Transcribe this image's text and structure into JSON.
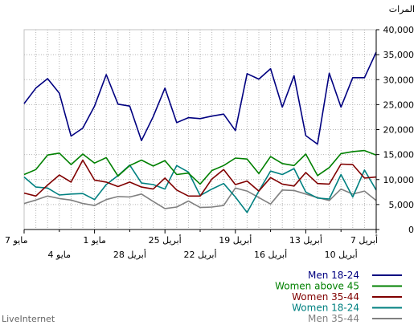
{
  "footer": "LiveInternet",
  "chart_data": {
    "type": "line",
    "ylabel": "المرات",
    "ylim": [
      0,
      40000
    ],
    "y_ticks": [
      "0",
      "5,000",
      "10,000",
      "15,000",
      "20,000",
      "25,000",
      "30,000",
      "35,000",
      "40,000"
    ],
    "x_ticks_row1": [
      "7 مايو",
      "1 مايو",
      "25 أبريل",
      "19 أبريل",
      "13 أبريل",
      "7 أبريل"
    ],
    "x_ticks_row2": [
      "4 مايو",
      "28 أبريل",
      "22 أبريل",
      "16 أبريل",
      "10 أبريل"
    ],
    "x_order": "right-to-left, earliest date at the right edge",
    "grid": true,
    "series": [
      {
        "name": "Men 18-24",
        "color": "#000080",
        "values": [
          25200,
          28300,
          30200,
          27300,
          18700,
          20300,
          24700,
          31000,
          25100,
          24700,
          17800,
          22600,
          28300,
          21400,
          22400,
          22200,
          22700,
          23100,
          19800,
          31200,
          30100,
          32200,
          24500,
          30800,
          18800,
          17100,
          31300,
          24500,
          30400,
          30400,
          35500
        ]
      },
      {
        "name": "Women above 45",
        "color": "#008000",
        "values": [
          11000,
          12000,
          14900,
          15300,
          13000,
          15100,
          13300,
          14400,
          10700,
          12800,
          13900,
          12700,
          13800,
          11000,
          11300,
          9100,
          11800,
          12800,
          14300,
          14100,
          11200,
          14600,
          13200,
          12800,
          15100,
          10800,
          12400,
          15200,
          15600,
          15800,
          14900
        ]
      },
      {
        "name": "Women 35-44",
        "color": "#800000",
        "values": [
          7300,
          6700,
          8900,
          10900,
          9500,
          13900,
          9900,
          9500,
          8600,
          9500,
          8500,
          8100,
          10300,
          7900,
          6700,
          6700,
          10100,
          12000,
          9000,
          9700,
          7700,
          10400,
          9100,
          8700,
          11400,
          9200,
          9100,
          13100,
          13000,
          10300,
          10500
        ]
      },
      {
        "name": "Women 18-24",
        "color": "#008080",
        "values": [
          10500,
          8500,
          8300,
          6900,
          7100,
          7200,
          6000,
          9000,
          10800,
          12900,
          9300,
          9000,
          8100,
          12800,
          11500,
          6800,
          8100,
          9200,
          6500,
          3400,
          7700,
          11700,
          11000,
          12200,
          7500,
          6300,
          6100,
          11000,
          6500,
          11900,
          7900
        ]
      },
      {
        "name": "Men 35-44",
        "color": "#808080",
        "values": [
          5200,
          5900,
          6700,
          6200,
          5900,
          5200,
          4800,
          6000,
          6600,
          6500,
          7100,
          5600,
          4200,
          4500,
          5700,
          4400,
          4500,
          4800,
          8300,
          7700,
          6400,
          5100,
          7900,
          7800,
          7100,
          6400,
          5800,
          8100,
          7100,
          7700,
          5800
        ]
      }
    ]
  }
}
